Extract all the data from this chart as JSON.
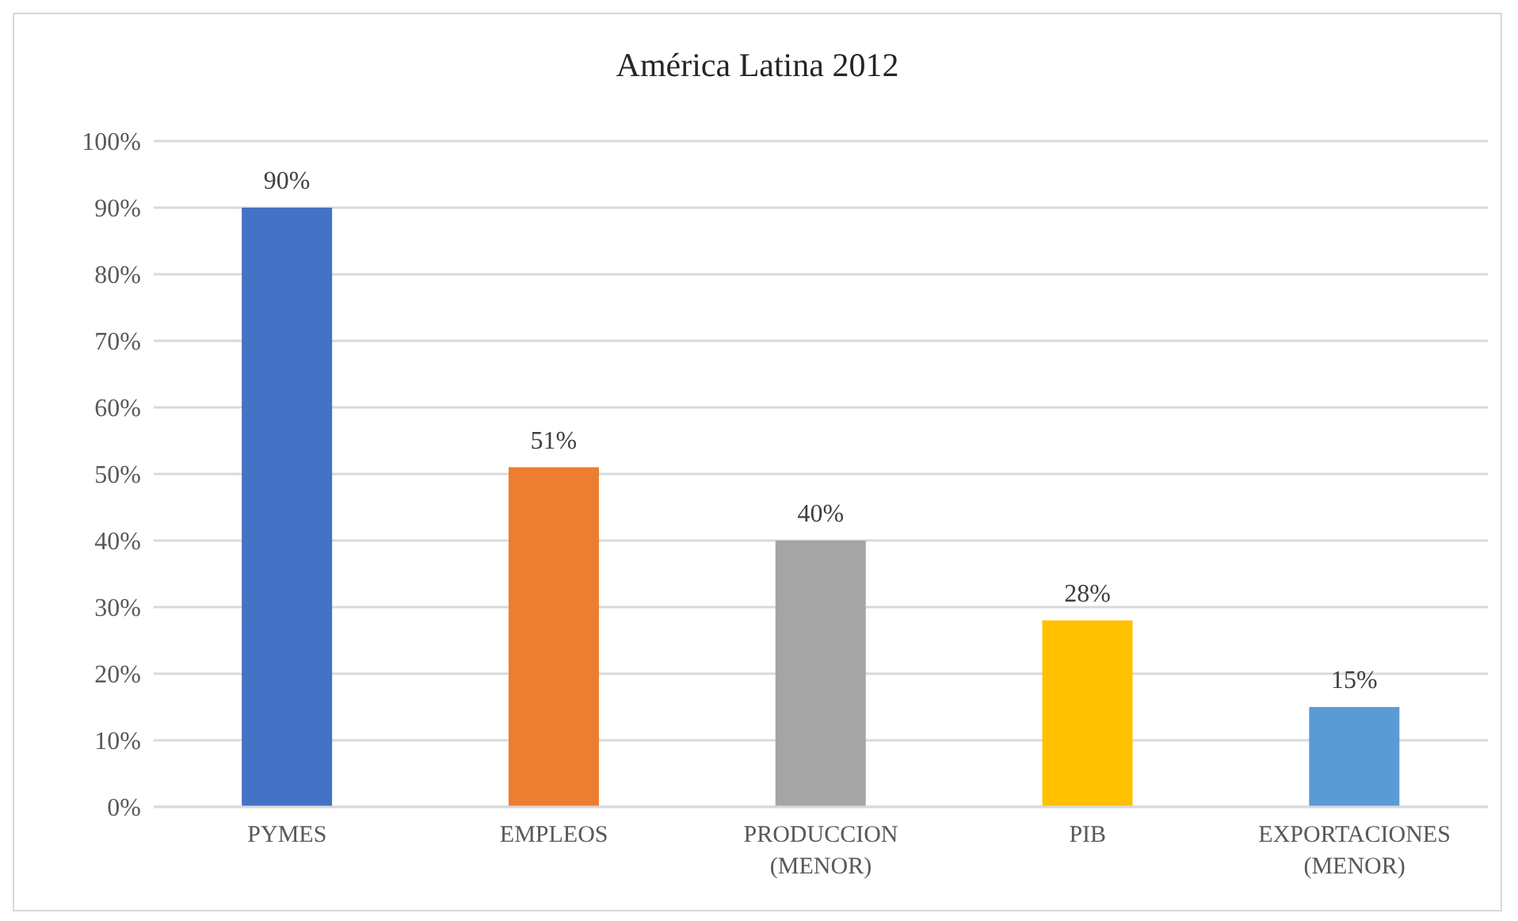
{
  "chart_data": {
    "type": "bar",
    "title": "América Latina 2012",
    "categories": [
      "PYMES",
      "EMPLEOS",
      "PRODUCCION (MENOR)",
      "PIB",
      "EXPORTACIONES (MENOR)"
    ],
    "values": [
      90,
      51,
      40,
      28,
      15
    ],
    "colors": [
      "#4472c4",
      "#ed7d31",
      "#a5a5a5",
      "#ffc000",
      "#5b9bd5"
    ],
    "value_labels": [
      "90%",
      "51%",
      "40%",
      "28%",
      "15%"
    ],
    "ylim": [
      0,
      100
    ],
    "yticks": [
      {
        "value": 0,
        "label": "0%"
      },
      {
        "value": 10,
        "label": "10%"
      },
      {
        "value": 20,
        "label": "20%"
      },
      {
        "value": 30,
        "label": "30%"
      },
      {
        "value": 40,
        "label": "40%"
      },
      {
        "value": 50,
        "label": "50%"
      },
      {
        "value": 60,
        "label": "60%"
      },
      {
        "value": 70,
        "label": "70%"
      },
      {
        "value": 80,
        "label": "80%"
      },
      {
        "value": 90,
        "label": "90%"
      },
      {
        "value": 100,
        "label": "100%"
      }
    ],
    "grid": "y",
    "legend": false
  }
}
